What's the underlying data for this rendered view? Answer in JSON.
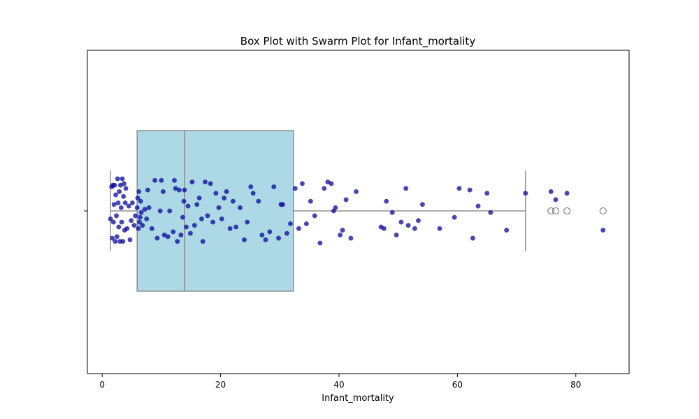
{
  "chart_data": {
    "type": "box",
    "title": "Box Plot with Swarm Plot for Infant_mortality",
    "xlabel": "Infant_mortality",
    "ylabel": "",
    "xlim": [
      -2.5,
      89
    ],
    "x_ticks": [
      0,
      20,
      40,
      60,
      80
    ],
    "x_tick_labels": [
      "0",
      "20",
      "40",
      "60",
      "80"
    ],
    "grid": false,
    "legend": "none",
    "box": {
      "whisker_low": 1.4,
      "q1": 5.9,
      "median": 13.9,
      "q3": 32.3,
      "whisker_high": 71.5,
      "outliers": [
        75.8,
        76.6,
        78.5,
        84.6
      ]
    },
    "points": [
      {
        "x": 1.4,
        "y": -0.05
      },
      {
        "x": 1.6,
        "y": 0.15
      },
      {
        "x": 1.7,
        "y": -0.17
      },
      {
        "x": 1.8,
        "y": 0.16
      },
      {
        "x": 1.9,
        "y": -0.07
      },
      {
        "x": 2.0,
        "y": 0.04
      },
      {
        "x": 2.1,
        "y": 0.16
      },
      {
        "x": 2.2,
        "y": -0.19
      },
      {
        "x": 2.3,
        "y": 0.1
      },
      {
        "x": 2.4,
        "y": -0.03
      },
      {
        "x": 2.5,
        "y": -0.16
      },
      {
        "x": 2.6,
        "y": 0.2
      },
      {
        "x": 2.7,
        "y": 0.05
      },
      {
        "x": 2.8,
        "y": -0.1
      },
      {
        "x": 2.9,
        "y": 0.12
      },
      {
        "x": 3.0,
        "y": -0.19
      },
      {
        "x": 3.1,
        "y": 0.16
      },
      {
        "x": 3.2,
        "y": 0.02
      },
      {
        "x": 3.3,
        "y": -0.07
      },
      {
        "x": 3.4,
        "y": 0.2
      },
      {
        "x": 3.5,
        "y": -0.19
      },
      {
        "x": 3.6,
        "y": 0.09
      },
      {
        "x": 3.7,
        "y": 0.17
      },
      {
        "x": 3.8,
        "y": -0.12
      },
      {
        "x": 3.9,
        "y": 0.05
      },
      {
        "x": 4.0,
        "y": 0.14
      },
      {
        "x": 4.2,
        "y": -0.11
      },
      {
        "x": 4.5,
        "y": 0.03
      },
      {
        "x": 4.7,
        "y": -0.18
      },
      {
        "x": 4.9,
        "y": -0.06
      },
      {
        "x": 5.1,
        "y": 0.05
      },
      {
        "x": 5.4,
        "y": -0.09
      },
      {
        "x": 5.6,
        "y": -0.03
      },
      {
        "x": 5.9,
        "y": 0.02
      },
      {
        "x": 6.0,
        "y": 0.08
      },
      {
        "x": 6.1,
        "y": -0.11
      },
      {
        "x": 6.2,
        "y": 0.12
      },
      {
        "x": 6.3,
        "y": -0.07
      },
      {
        "x": 6.4,
        "y": -0.04
      },
      {
        "x": 6.5,
        "y": 0.06
      },
      {
        "x": 6.6,
        "y": -0.01
      },
      {
        "x": 6.8,
        "y": -0.09
      },
      {
        "x": 7.2,
        "y": 0.01
      },
      {
        "x": 7.5,
        "y": -0.05
      },
      {
        "x": 7.7,
        "y": 0.13
      },
      {
        "x": 7.9,
        "y": 0.02
      },
      {
        "x": 8.4,
        "y": -0.11
      },
      {
        "x": 8.9,
        "y": 0.19
      },
      {
        "x": 9.3,
        "y": -0.17
      },
      {
        "x": 9.8,
        "y": 0.0
      },
      {
        "x": 10.0,
        "y": 0.19
      },
      {
        "x": 10.3,
        "y": 0.12
      },
      {
        "x": 10.5,
        "y": -0.15
      },
      {
        "x": 11.1,
        "y": -0.16
      },
      {
        "x": 11.4,
        "y": 0.0
      },
      {
        "x": 12.0,
        "y": -0.13
      },
      {
        "x": 12.2,
        "y": 0.19
      },
      {
        "x": 12.4,
        "y": 0.14
      },
      {
        "x": 12.7,
        "y": -0.19
      },
      {
        "x": 13.0,
        "y": 0.13
      },
      {
        "x": 13.3,
        "y": -0.15
      },
      {
        "x": 13.6,
        "y": -0.04
      },
      {
        "x": 13.8,
        "y": 0.06
      },
      {
        "x": 13.9,
        "y": 0.13
      },
      {
        "x": 14.2,
        "y": -0.1
      },
      {
        "x": 14.5,
        "y": 0.03
      },
      {
        "x": 14.9,
        "y": -0.14
      },
      {
        "x": 15.2,
        "y": 0.18
      },
      {
        "x": 15.6,
        "y": -0.09
      },
      {
        "x": 16.0,
        "y": 0.04
      },
      {
        "x": 16.4,
        "y": 0.08
      },
      {
        "x": 16.8,
        "y": -0.05
      },
      {
        "x": 17.0,
        "y": -0.19
      },
      {
        "x": 17.4,
        "y": 0.18
      },
      {
        "x": 17.8,
        "y": -0.03
      },
      {
        "x": 18.3,
        "y": 0.17
      },
      {
        "x": 18.7,
        "y": -0.07
      },
      {
        "x": 19.2,
        "y": 0.11
      },
      {
        "x": 19.7,
        "y": 0.02
      },
      {
        "x": 20.2,
        "y": -0.05
      },
      {
        "x": 20.6,
        "y": 0.08
      },
      {
        "x": 21.0,
        "y": 0.12
      },
      {
        "x": 21.6,
        "y": -0.11
      },
      {
        "x": 22.1,
        "y": 0.06
      },
      {
        "x": 22.6,
        "y": -0.1
      },
      {
        "x": 23.3,
        "y": 0.02
      },
      {
        "x": 24.0,
        "y": -0.18
      },
      {
        "x": 24.5,
        "y": -0.07
      },
      {
        "x": 25.1,
        "y": 0.15
      },
      {
        "x": 25.5,
        "y": 0.11
      },
      {
        "x": 26.4,
        "y": 0.06
      },
      {
        "x": 27.0,
        "y": -0.15
      },
      {
        "x": 27.6,
        "y": -0.18
      },
      {
        "x": 28.3,
        "y": -0.13
      },
      {
        "x": 29.0,
        "y": 0.15
      },
      {
        "x": 29.8,
        "y": -0.17
      },
      {
        "x": 30.2,
        "y": 0.04
      },
      {
        "x": 30.5,
        "y": 0.04
      },
      {
        "x": 31.2,
        "y": -0.14
      },
      {
        "x": 31.8,
        "y": -0.08
      },
      {
        "x": 32.6,
        "y": 0.14
      },
      {
        "x": 33.2,
        "y": -0.11
      },
      {
        "x": 33.8,
        "y": 0.17
      },
      {
        "x": 34.5,
        "y": -0.08
      },
      {
        "x": 35.2,
        "y": 0.06
      },
      {
        "x": 35.9,
        "y": -0.03
      },
      {
        "x": 36.8,
        "y": -0.2
      },
      {
        "x": 37.5,
        "y": 0.14
      },
      {
        "x": 38.1,
        "y": 0.18
      },
      {
        "x": 38.7,
        "y": 0.17
      },
      {
        "x": 39.1,
        "y": 0.0
      },
      {
        "x": 39.4,
        "y": 0.02
      },
      {
        "x": 40.2,
        "y": -0.15
      },
      {
        "x": 40.6,
        "y": -0.12
      },
      {
        "x": 41.2,
        "y": 0.07
      },
      {
        "x": 42.0,
        "y": -0.17
      },
      {
        "x": 42.9,
        "y": 0.12
      },
      {
        "x": 47.1,
        "y": -0.1
      },
      {
        "x": 47.6,
        "y": -0.11
      },
      {
        "x": 48.0,
        "y": 0.06
      },
      {
        "x": 49.0,
        "y": -0.01
      },
      {
        "x": 49.7,
        "y": -0.15
      },
      {
        "x": 50.5,
        "y": -0.07
      },
      {
        "x": 51.3,
        "y": 0.14
      },
      {
        "x": 51.7,
        "y": -0.09
      },
      {
        "x": 52.8,
        "y": -0.11
      },
      {
        "x": 53.4,
        "y": -0.06
      },
      {
        "x": 54.1,
        "y": 0.04
      },
      {
        "x": 57.0,
        "y": -0.11
      },
      {
        "x": 59.5,
        "y": -0.04
      },
      {
        "x": 60.3,
        "y": 0.14
      },
      {
        "x": 62.1,
        "y": 0.13
      },
      {
        "x": 62.6,
        "y": -0.17
      },
      {
        "x": 63.5,
        "y": 0.03
      },
      {
        "x": 65.0,
        "y": 0.11
      },
      {
        "x": 65.6,
        "y": -0.01
      },
      {
        "x": 68.3,
        "y": -0.12
      },
      {
        "x": 71.5,
        "y": 0.11
      },
      {
        "x": 75.8,
        "y": 0.12
      },
      {
        "x": 76.6,
        "y": 0.07
      },
      {
        "x": 78.5,
        "y": 0.11
      },
      {
        "x": 84.6,
        "y": -0.12
      }
    ]
  },
  "colors": {
    "box_fill": "#add8e6",
    "box_edge": "#7a7a7a",
    "point_fill": "#0a0a9a",
    "outlier_edge": "#7a7a7a"
  }
}
